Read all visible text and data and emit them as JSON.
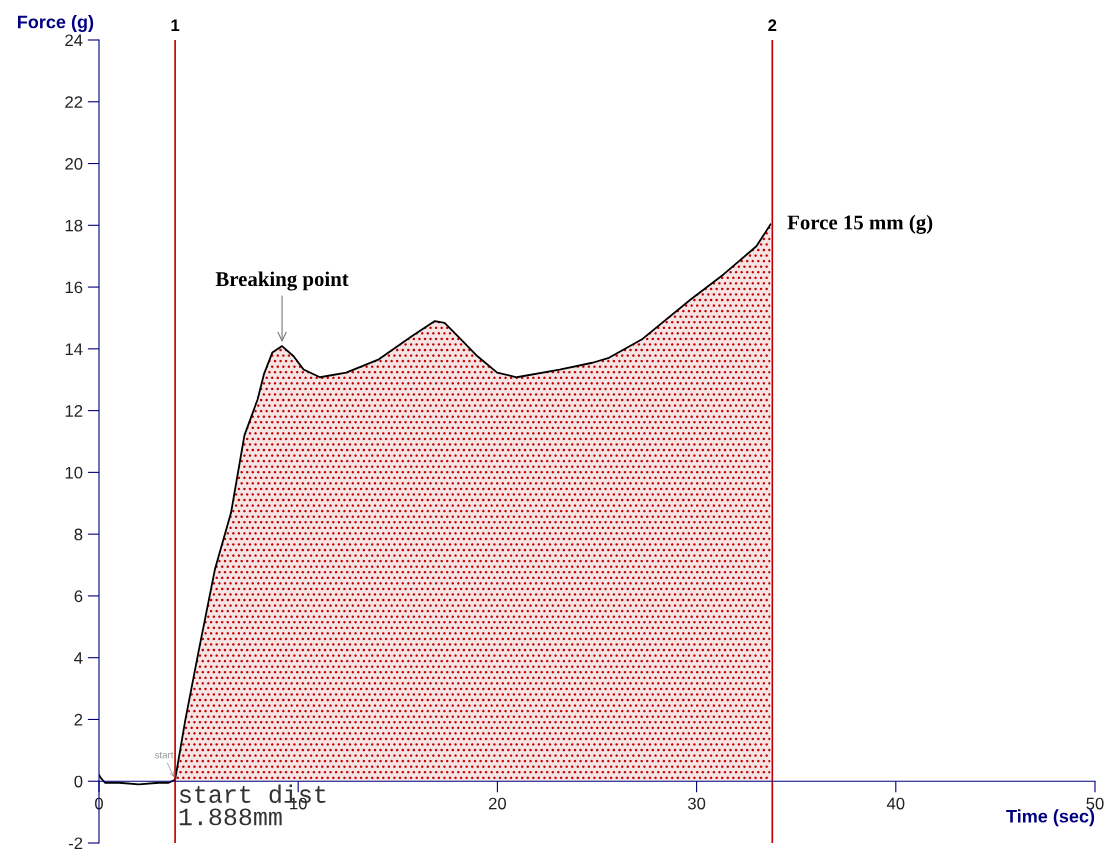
{
  "chart_data": {
    "type": "line",
    "xlabel": "Time (sec)",
    "ylabel": "Force (g)",
    "xlim": [
      0,
      50
    ],
    "ylim": [
      -2,
      24
    ],
    "xticks": [
      0,
      10,
      20,
      30,
      40,
      50
    ],
    "yticks": [
      -2,
      0,
      2,
      4,
      6,
      8,
      10,
      12,
      14,
      16,
      18,
      20,
      22,
      24
    ],
    "grid": false,
    "legend": false,
    "marker": "none",
    "line_style": "solid",
    "series": [
      {
        "color": "#000000",
        "x": [
          0,
          0.1,
          0.3,
          1,
          2,
          3,
          3.5,
          3.82
        ],
        "values": [
          0.2,
          0.1,
          -0.05,
          -0.05,
          -0.1,
          -0.05,
          -0.05,
          0.05
        ]
      },
      {
        "type": "area",
        "color": "#000000",
        "x": [
          3.82,
          4.33,
          4.99,
          5.82,
          6.63,
          7.3,
          7.96,
          8.29,
          8.7,
          9.19,
          9.77,
          10.27,
          11.09,
          12.41,
          14.05,
          15.7,
          16.86,
          17.35,
          18.01,
          19.0,
          19.99,
          20.97,
          23.12,
          24.77,
          25.6,
          27.24,
          29.7,
          31.35,
          33.0,
          33.71
        ],
        "values": [
          0.05,
          1.97,
          4.17,
          6.86,
          8.7,
          11.2,
          12.36,
          13.2,
          13.88,
          14.09,
          13.76,
          13.33,
          13.08,
          13.23,
          13.66,
          14.41,
          14.9,
          14.84,
          14.41,
          13.76,
          13.23,
          13.08,
          13.33,
          13.55,
          13.71,
          14.3,
          15.6,
          16.41,
          17.32,
          18.03
        ]
      }
    ],
    "ref_lines": [
      {
        "axis": "x",
        "value": 3.82,
        "color": "#c00000"
      },
      {
        "axis": "x",
        "value": 33.8,
        "color": "#c00000"
      }
    ],
    "annotations": [
      {
        "text": "Breaking point",
        "x": 9.19,
        "y": 14.09
      },
      {
        "text": "Force 15 mm (g)",
        "x": 33.71,
        "y": 18.03
      },
      {
        "text": "start",
        "x": 3.82,
        "y": 0.05
      },
      {
        "text": "start dist\n1.888mm",
        "x": 3.82,
        "y": 0.05
      },
      {
        "text": "1",
        "x": 3.82,
        "y": 24
      },
      {
        "text": "2",
        "x": 33.8,
        "y": 24
      }
    ]
  }
}
